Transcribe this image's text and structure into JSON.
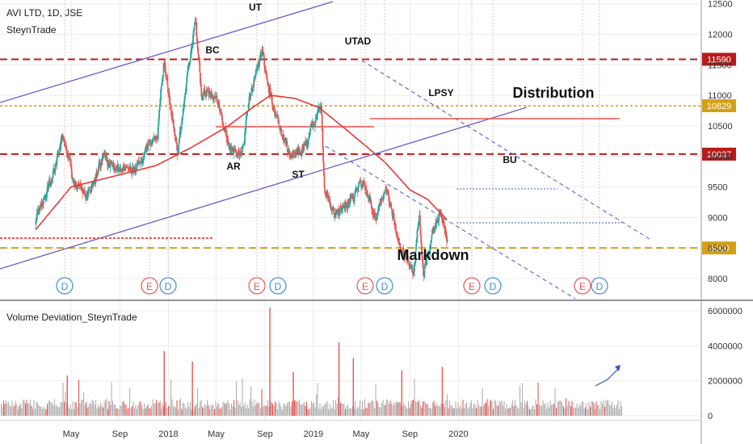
{
  "header": {
    "title": "AVI LTD, 1D, JSE",
    "author": "SteynTrade"
  },
  "colors": {
    "candle_up": "#26a69a",
    "candle_down": "#ef5350",
    "ma": "#e53935",
    "channel": "#6a5acd",
    "red_dashed": "#b71c1c",
    "gold": "#d4a017",
    "vol_red": "#ef5350",
    "vol_gray": "#b0b0b0",
    "grid": "#ececec"
  },
  "chart_data": [
    {
      "type": "candlestick",
      "title": "AVI LTD, 1D, JSE",
      "x_ticks": [
        "May",
        "Sep",
        "2018",
        "May",
        "Sep",
        "2019",
        "May",
        "Sep",
        "2020"
      ],
      "y_ticks": [
        8000,
        8500,
        9000,
        9500,
        10000,
        10500,
        11000,
        11500,
        12000,
        12500
      ],
      "ylim": [
        7650,
        12550
      ],
      "price_levels": [
        {
          "value": 11590,
          "label": "11590",
          "style": "dashed",
          "color": "#b71c1c"
        },
        {
          "value": 10829,
          "label": "10829",
          "style": "dotted",
          "color": "#d4a017"
        },
        {
          "value": 10037,
          "label": "10037",
          "style": "dashed",
          "color": "#b71c1c"
        },
        {
          "value": 8500,
          "label": "8500",
          "style": "dashed",
          "color": "#d4a017"
        }
      ],
      "annotations": [
        "UT",
        "BC",
        "UTAD",
        "LPSY",
        "Distribution",
        "AR",
        "ST",
        "BU",
        "Markdown"
      ],
      "event_markers": [
        "D",
        "E",
        "D",
        "E",
        "D",
        "E",
        "D",
        "E",
        "D",
        "E",
        "D"
      ],
      "series": [
        {
          "name": "price",
          "anchors": [
            [
              "2017-02-01",
              8950
            ],
            [
              "2017-03-15",
              9650
            ],
            [
              "2017-04-10",
              10400
            ],
            [
              "2017-05-05",
              9600
            ],
            [
              "2017-06-10",
              9350
            ],
            [
              "2017-07-20",
              10000
            ],
            [
              "2017-09-01",
              9750
            ],
            [
              "2017-10-15",
              9800
            ],
            [
              "2017-12-05",
              10400
            ],
            [
              "2017-12-20",
              11550
            ],
            [
              "2018-01-25",
              10050
            ],
            [
              "2018-02-20",
              11450
            ],
            [
              "2018-03-10",
              12150
            ],
            [
              "2018-03-25",
              11050
            ],
            [
              "2018-05-01",
              11000
            ],
            [
              "2018-06-01",
              10200
            ],
            [
              "2018-07-05",
              10050
            ],
            [
              "2018-07-25",
              11000
            ],
            [
              "2018-08-25",
              11700
            ],
            [
              "2018-09-10",
              11100
            ],
            [
              "2018-10-05",
              10500
            ],
            [
              "2018-11-05",
              10000
            ],
            [
              "2018-12-15",
              10200
            ],
            [
              "2019-01-20",
              10900
            ],
            [
              "2019-01-29",
              9500
            ],
            [
              "2019-02-25",
              9050
            ],
            [
              "2019-04-05",
              9300
            ],
            [
              "2019-05-05",
              9600
            ],
            [
              "2019-06-05",
              9000
            ],
            [
              "2019-07-05",
              9500
            ],
            [
              "2019-08-05",
              8550
            ],
            [
              "2019-09-10",
              8100
            ],
            [
              "2019-09-25",
              9100
            ],
            [
              "2019-10-05",
              8000
            ],
            [
              "2019-10-25",
              8700
            ],
            [
              "2019-11-15",
              9100
            ],
            [
              "2019-12-05",
              8650
            ]
          ]
        },
        {
          "name": "ma",
          "anchors": [
            [
              "2017-02-01",
              8800
            ],
            [
              "2017-05-01",
              9500
            ],
            [
              "2017-09-01",
              9700
            ],
            [
              "2017-12-01",
              9850
            ],
            [
              "2018-03-01",
              10150
            ],
            [
              "2018-06-01",
              10500
            ],
            [
              "2018-08-01",
              10800
            ],
            [
              "2018-09-15",
              11000
            ],
            [
              "2018-11-15",
              10950
            ],
            [
              "2019-01-15",
              10800
            ],
            [
              "2019-04-01",
              10400
            ],
            [
              "2019-07-01",
              9900
            ],
            [
              "2019-09-01",
              9450
            ],
            [
              "2019-10-15",
              9300
            ],
            [
              "2019-12-05",
              8950
            ]
          ]
        }
      ]
    },
    {
      "type": "bar",
      "title": "Volume Deviation_SteynTrade",
      "y_ticks": [
        0,
        2000000,
        4000000,
        6000000
      ],
      "y_tick_labels": [
        "0",
        "2000000",
        "4000000",
        "6000000"
      ],
      "ylim": [
        0,
        6300000
      ],
      "spikes": [
        [
          "2018-09-12",
          6200000
        ],
        [
          "2019-03-05",
          4200000
        ],
        [
          "2017-12-20",
          3700000
        ],
        [
          "2019-04-10",
          3300000
        ],
        [
          "2018-03-01",
          3100000
        ],
        [
          "2019-11-20",
          2800000
        ],
        [
          "2018-11-10",
          2500000
        ],
        [
          "2019-08-10",
          2600000
        ],
        [
          "2017-04-20",
          2300000
        ]
      ]
    }
  ]
}
